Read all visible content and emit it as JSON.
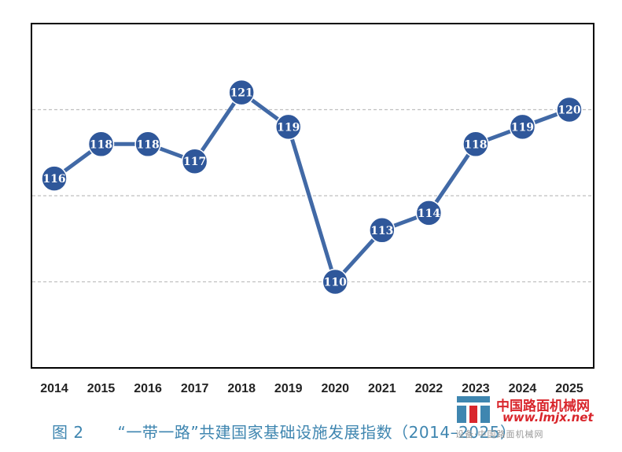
{
  "chart_data": {
    "type": "line",
    "categories": [
      "2014",
      "2015",
      "2016",
      "2017",
      "2018",
      "2019",
      "2020",
      "2021",
      "2022",
      "2023",
      "2024",
      "2025"
    ],
    "series": [
      {
        "values": [
          116,
          118,
          118,
          117,
          121,
          119,
          110,
          113,
          114,
          118,
          119,
          120
        ]
      }
    ],
    "data_labels": [
      "116",
      "118",
      "118",
      "117",
      "121",
      "119",
      "110",
      "113",
      "114",
      "118",
      "119",
      "120"
    ],
    "ylim": [
      105,
      125
    ],
    "gridlines": [
      110,
      115,
      120
    ],
    "grid": true,
    "y_axis_visible": false,
    "line_color": "#4169a6",
    "marker_color": "#2f579a",
    "label_color": "#ffffff",
    "grid_color": "#bfbfbf"
  },
  "caption": {
    "number": "图 2",
    "text": "“一带一路”共建国家基础设施发展指数（2014–2025）"
  },
  "watermark": {
    "name_cn": "中国路面机械网",
    "url": "www.lmjx.net",
    "subtitle": "设备·中国路面机械网"
  }
}
